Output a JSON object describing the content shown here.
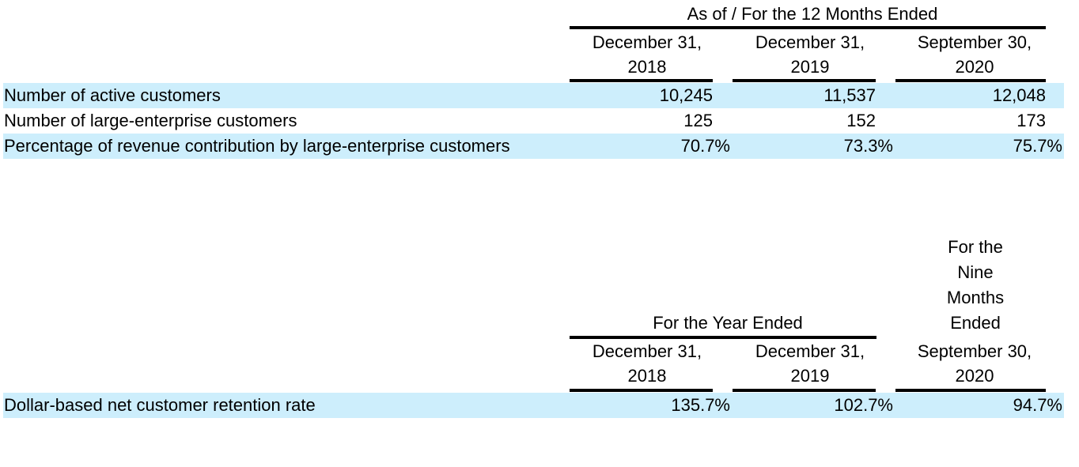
{
  "table1": {
    "group_header": "As of / For the 12 Months Ended",
    "columns": [
      {
        "line1": "December 31,",
        "line2": "2018"
      },
      {
        "line1": "December 31,",
        "line2": "2019"
      },
      {
        "line1": "September 30,",
        "line2": "2020"
      }
    ],
    "rows": [
      {
        "label": "Number of active customers",
        "values": [
          "10,245",
          "11,537",
          "12,048"
        ]
      },
      {
        "label": "Number of large-enterprise customers",
        "values": [
          "125",
          "152",
          "173"
        ]
      },
      {
        "label": "Percentage of revenue contribution by large-enterprise customers",
        "values": [
          "70.7%",
          "73.3%",
          "75.7%"
        ]
      }
    ]
  },
  "table2": {
    "group_header": "For the Year Ended",
    "nine_months_header": [
      "For the",
      "Nine",
      "Months",
      "Ended"
    ],
    "columns": [
      {
        "line1": "December 31,",
        "line2": "2018"
      },
      {
        "line1": "December 31,",
        "line2": "2019"
      },
      {
        "line1": "September 30,",
        "line2": "2020"
      }
    ],
    "rows": [
      {
        "label": "Dollar-based net customer retention rate",
        "values": [
          "135.7%",
          "102.7%",
          "94.7%"
        ]
      }
    ]
  },
  "colors": {
    "band": "#cdeefc",
    "rule": "#000000"
  }
}
